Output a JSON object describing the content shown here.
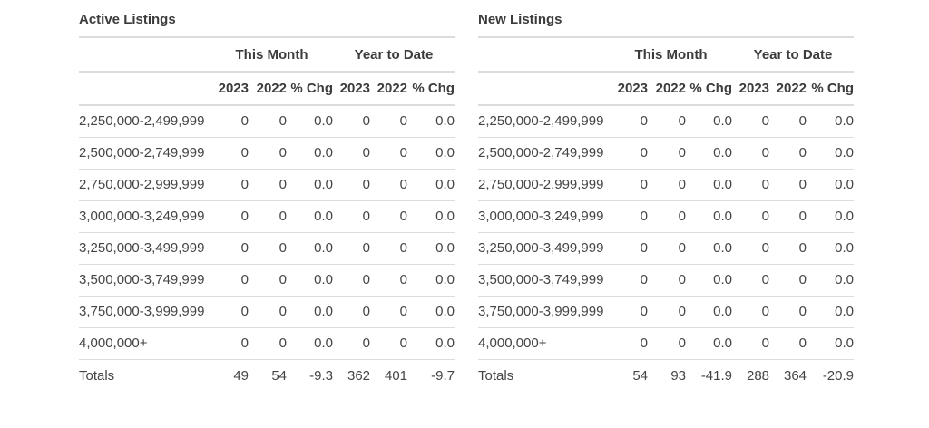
{
  "report": {
    "colors": {
      "background": "#ffffff",
      "divider": "#dcdcdc",
      "text": "#444444",
      "heading_text": "#3c3c3c"
    },
    "tables": [
      {
        "title": "Active Listings",
        "group_headers": {
          "this_month": "This Month",
          "year_to_date": "Year to Date"
        },
        "column_headers": [
          "2023",
          "2022",
          "% Chg",
          "2023",
          "2022",
          "% Chg"
        ],
        "rows": [
          {
            "label": "2,250,000-2,499,999",
            "values": [
              "0",
              "0",
              "0.0",
              "0",
              "0",
              "0.0"
            ]
          },
          {
            "label": "2,500,000-2,749,999",
            "values": [
              "0",
              "0",
              "0.0",
              "0",
              "0",
              "0.0"
            ]
          },
          {
            "label": "2,750,000-2,999,999",
            "values": [
              "0",
              "0",
              "0.0",
              "0",
              "0",
              "0.0"
            ]
          },
          {
            "label": "3,000,000-3,249,999",
            "values": [
              "0",
              "0",
              "0.0",
              "0",
              "0",
              "0.0"
            ]
          },
          {
            "label": "3,250,000-3,499,999",
            "values": [
              "0",
              "0",
              "0.0",
              "0",
              "0",
              "0.0"
            ]
          },
          {
            "label": "3,500,000-3,749,999",
            "values": [
              "0",
              "0",
              "0.0",
              "0",
              "0",
              "0.0"
            ]
          },
          {
            "label": "3,750,000-3,999,999",
            "values": [
              "0",
              "0",
              "0.0",
              "0",
              "0",
              "0.0"
            ]
          },
          {
            "label": "4,000,000+",
            "values": [
              "0",
              "0",
              "0.0",
              "0",
              "0",
              "0.0"
            ]
          }
        ],
        "totals": {
          "label": "Totals",
          "values": [
            "49",
            "54",
            "-9.3",
            "362",
            "401",
            "-9.7"
          ]
        }
      },
      {
        "title": "New Listings",
        "group_headers": {
          "this_month": "This Month",
          "year_to_date": "Year to Date"
        },
        "column_headers": [
          "2023",
          "2022",
          "% Chg",
          "2023",
          "2022",
          "% Chg"
        ],
        "rows": [
          {
            "label": "2,250,000-2,499,999",
            "values": [
              "0",
              "0",
              "0.0",
              "0",
              "0",
              "0.0"
            ]
          },
          {
            "label": "2,500,000-2,749,999",
            "values": [
              "0",
              "0",
              "0.0",
              "0",
              "0",
              "0.0"
            ]
          },
          {
            "label": "2,750,000-2,999,999",
            "values": [
              "0",
              "0",
              "0.0",
              "0",
              "0",
              "0.0"
            ]
          },
          {
            "label": "3,000,000-3,249,999",
            "values": [
              "0",
              "0",
              "0.0",
              "0",
              "0",
              "0.0"
            ]
          },
          {
            "label": "3,250,000-3,499,999",
            "values": [
              "0",
              "0",
              "0.0",
              "0",
              "0",
              "0.0"
            ]
          },
          {
            "label": "3,500,000-3,749,999",
            "values": [
              "0",
              "0",
              "0.0",
              "0",
              "0",
              "0.0"
            ]
          },
          {
            "label": "3,750,000-3,999,999",
            "values": [
              "0",
              "0",
              "0.0",
              "0",
              "0",
              "0.0"
            ]
          },
          {
            "label": "4,000,000+",
            "values": [
              "0",
              "0",
              "0.0",
              "0",
              "0",
              "0.0"
            ]
          }
        ],
        "totals": {
          "label": "Totals",
          "values": [
            "54",
            "93",
            "-41.9",
            "288",
            "364",
            "-20.9"
          ]
        }
      }
    ]
  }
}
